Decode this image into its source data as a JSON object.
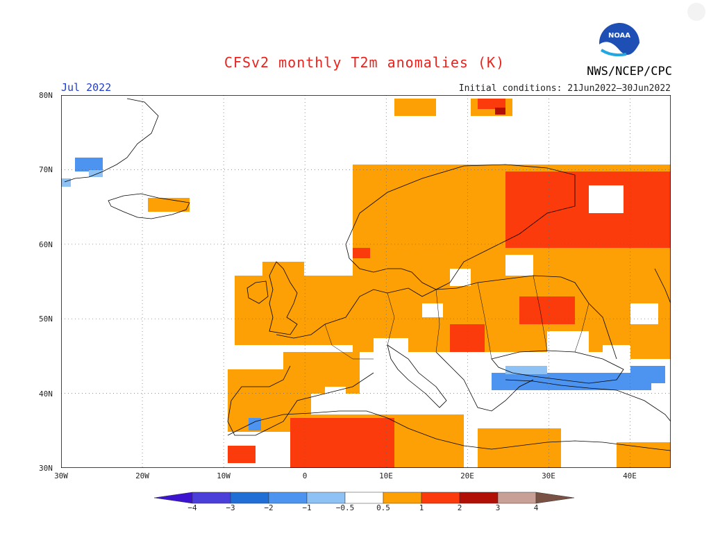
{
  "title": "CFSv2 monthly T2m anomalies (K)",
  "month": "Jul 2022",
  "agency": "NWS/NCEP/CPC",
  "logo_text": "NOAA",
  "initial_conditions": "Initial conditions: 21Jun2022–30Jun2022",
  "lat_labels": [
    "80N",
    "70N",
    "60N",
    "50N",
    "40N",
    "30N"
  ],
  "lon_labels": [
    "30W",
    "20W",
    "10W",
    "0",
    "10E",
    "20E",
    "30E",
    "40E"
  ],
  "colorbar": {
    "labels": [
      "−4",
      "−3",
      "−2",
      "−1",
      "−0.5",
      "0.5",
      "1",
      "2",
      "3",
      "4"
    ],
    "colors": [
      "#3c14d0",
      "#4a3fd8",
      "#1f6fd6",
      "#4c94f0",
      "#8ec2f5",
      "#ffffff",
      "#fca005",
      "#fb3b0b",
      "#b11007",
      "#c9a096",
      "#7a5245"
    ]
  },
  "colors": {
    "warm1": "#fca005",
    "warm2": "#fb3b0b",
    "warm3": "#b11007",
    "cool1": "#8ec2f5",
    "cool2": "#4c94f0",
    "title": "#e8221c",
    "month": "#1f3cc8"
  }
}
